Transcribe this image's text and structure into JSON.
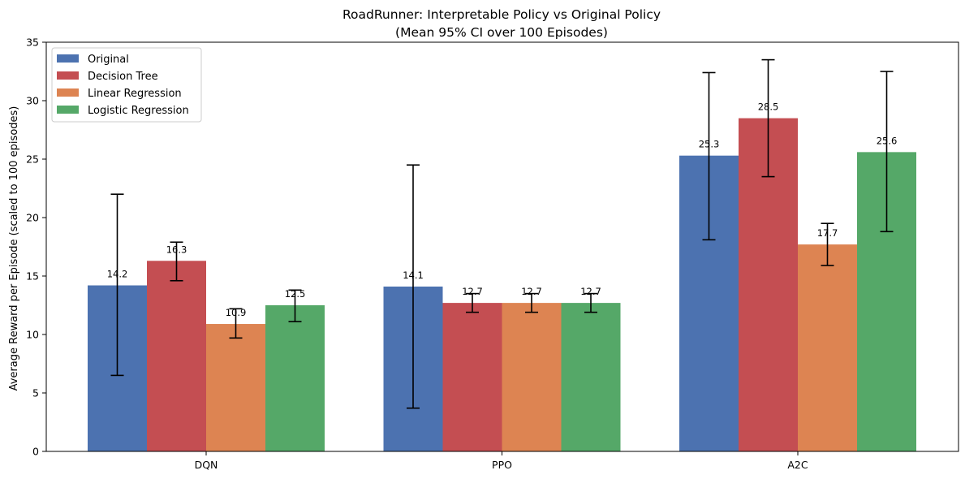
{
  "chart_data": {
    "type": "bar",
    "title": "RoadRunner: Interpretable Policy vs Original Policy",
    "subtitle": "(Mean 95% CI over 100 Episodes)",
    "xlabel": "",
    "ylabel": "Average Reward per Episode (scaled to 100 episodes)",
    "ylim": [
      0,
      35
    ],
    "yticks": [
      0,
      5,
      10,
      15,
      20,
      25,
      30,
      35
    ],
    "categories": [
      "DQN",
      "PPO",
      "A2C"
    ],
    "legend_position": "top-left",
    "series": [
      {
        "name": "Original",
        "color": "#4c72b0",
        "values": [
          14.2,
          14.1,
          25.3
        ],
        "labels": [
          "14.2",
          "14.1",
          "25.3"
        ],
        "ci_low": [
          6.5,
          3.7,
          18.1
        ],
        "ci_high": [
          22.0,
          24.5,
          32.4
        ]
      },
      {
        "name": "Decision Tree",
        "color": "#c44e52",
        "values": [
          16.3,
          12.7,
          28.5
        ],
        "labels": [
          "16.3",
          "12.7",
          "28.5"
        ],
        "ci_low": [
          14.6,
          11.9,
          23.5
        ],
        "ci_high": [
          17.9,
          13.5,
          33.5
        ]
      },
      {
        "name": "Linear Regression",
        "color": "#dd8452",
        "values": [
          10.9,
          12.7,
          17.7
        ],
        "labels": [
          "10.9",
          "12.7",
          "17.7"
        ],
        "ci_low": [
          9.7,
          11.9,
          15.9
        ],
        "ci_high": [
          12.2,
          13.5,
          19.5
        ]
      },
      {
        "name": "Logistic Regression",
        "color": "#55a868",
        "values": [
          12.5,
          12.7,
          25.6
        ],
        "labels": [
          "12.5",
          "12.7",
          "25.6"
        ],
        "ci_low": [
          11.1,
          11.9,
          18.8
        ],
        "ci_high": [
          13.8,
          13.5,
          32.5
        ]
      }
    ]
  }
}
